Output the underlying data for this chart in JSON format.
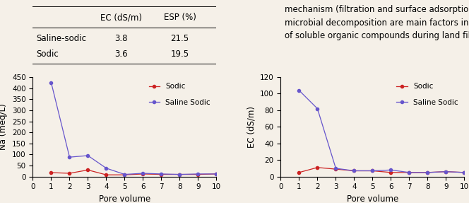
{
  "table": {
    "headers": [
      "",
      "EC (dS/m)",
      "ESP (%)"
    ],
    "rows": [
      [
        "Saline-sodic",
        "3.8",
        "21.5"
      ],
      [
        "Sodic",
        "3.6",
        "19.5"
      ]
    ]
  },
  "plot1": {
    "xlabel": "Pore volume",
    "ylabel": "Na (meq/L)",
    "xlim": [
      0,
      10
    ],
    "ylim": [
      0,
      450
    ],
    "yticks": [
      0,
      50,
      100,
      150,
      200,
      250,
      300,
      350,
      400,
      450
    ],
    "xticks": [
      0,
      1,
      2,
      3,
      4,
      5,
      6,
      7,
      8,
      9,
      10
    ],
    "sodic_x": [
      1,
      2,
      3,
      4,
      5,
      6,
      7,
      8,
      9,
      10
    ],
    "sodic_y": [
      18,
      15,
      30,
      8,
      8,
      12,
      10,
      10,
      10,
      12
    ],
    "saline_x": [
      1,
      2,
      3,
      4,
      5,
      6,
      7,
      8,
      9,
      10
    ],
    "saline_y": [
      425,
      88,
      95,
      38,
      10,
      15,
      12,
      10,
      12,
      12
    ],
    "sodic_color": "#cc2222",
    "saline_color": "#6655cc",
    "marker": "o",
    "markersize": 3
  },
  "plot2": {
    "xlabel": "Pore volume",
    "ylabel": "EC (dS/m)",
    "xlim": [
      0,
      10
    ],
    "ylim": [
      0,
      120
    ],
    "yticks": [
      0,
      20,
      40,
      60,
      80,
      100,
      120
    ],
    "xticks": [
      0,
      1,
      2,
      3,
      4,
      5,
      6,
      7,
      8,
      9,
      10
    ],
    "sodic_x": [
      1,
      2,
      3,
      4,
      5,
      6,
      7,
      8,
      9,
      10
    ],
    "sodic_y": [
      5,
      11,
      9,
      7,
      7,
      5,
      5,
      5,
      6,
      5
    ],
    "saline_x": [
      1,
      2,
      3,
      4,
      5,
      6,
      7,
      8,
      9,
      10
    ],
    "saline_y": [
      104,
      82,
      10,
      7,
      7,
      8,
      5,
      5,
      6,
      5
    ],
    "sodic_color": "#cc2222",
    "saline_color": "#6655cc",
    "marker": "o",
    "markersize": 3
  },
  "legend_labels": [
    "Sodic",
    "Saline Sodic"
  ],
  "text_block": "mechanism (filtration and surface adsorption) and\nmicrobial decomposition are main factors in removal\nof soluble organic compounds during land filtration",
  "bg_color": "#f5f0e8",
  "fontsize": 8.5
}
